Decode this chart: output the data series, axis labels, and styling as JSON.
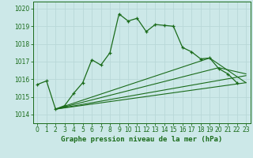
{
  "title": "Graphe pression niveau de la mer (hPa)",
  "bg_color": "#cce8e8",
  "grid_color": "#aacccc",
  "line_color": "#1a6b1a",
  "xlim": [
    -0.5,
    23.5
  ],
  "ylim": [
    1013.5,
    1020.4
  ],
  "yticks": [
    1014,
    1015,
    1016,
    1017,
    1018,
    1019,
    1020
  ],
  "xticks": [
    0,
    1,
    2,
    3,
    4,
    5,
    6,
    7,
    8,
    9,
    10,
    11,
    12,
    13,
    14,
    15,
    16,
    17,
    18,
    19,
    20,
    21,
    22,
    23
  ],
  "main_line_x": [
    0,
    1,
    2,
    3,
    4,
    5,
    6,
    7,
    8,
    9,
    10,
    11,
    12,
    13,
    14,
    15,
    16,
    17,
    18,
    19,
    20,
    21,
    22
  ],
  "main_line_y": [
    1015.7,
    1015.9,
    1014.3,
    1014.5,
    1015.2,
    1015.8,
    1017.1,
    1016.8,
    1017.5,
    1019.7,
    1019.3,
    1019.45,
    1018.7,
    1019.1,
    1019.05,
    1019.0,
    1017.8,
    1017.55,
    1017.15,
    1017.2,
    1016.6,
    1016.3,
    1015.8
  ],
  "trend_lines": [
    {
      "x0": 2,
      "y0": 1014.3,
      "x1": 23,
      "y1": 1015.8
    },
    {
      "x0": 2,
      "y0": 1014.3,
      "x1": 23,
      "y1": 1016.2
    },
    {
      "x0": 2,
      "y0": 1014.3,
      "x1": 20,
      "y1": 1016.65,
      "x2": 23,
      "y2": 1016.3
    },
    {
      "x0": 2,
      "y0": 1014.3,
      "x1": 19,
      "y1": 1017.2,
      "x2": 23,
      "y2": 1015.8
    }
  ],
  "title_fontsize": 6.5,
  "tick_fontsize": 5.5,
  "ylabel_fontsize": 6.5
}
